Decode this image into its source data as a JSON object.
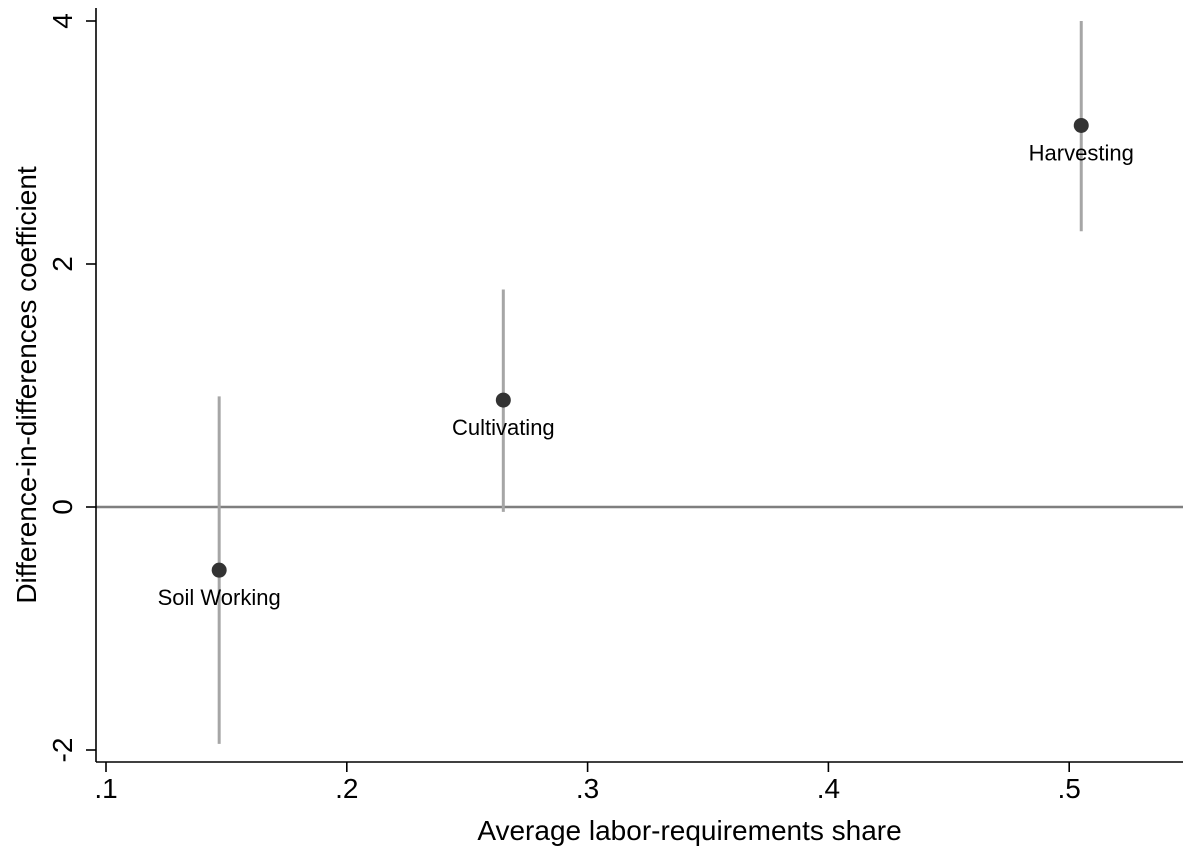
{
  "chart_data": {
    "type": "scatter",
    "xlabel": "Average labor-requirements share",
    "ylabel": "Difference-in-differences coefficient",
    "xlim": [
      0.1,
      0.55
    ],
    "ylim": [
      -2.0,
      4.0
    ],
    "xticks": [
      {
        "value": 0.1,
        "label": ".1"
      },
      {
        "value": 0.2,
        "label": ".2"
      },
      {
        "value": 0.3,
        "label": ".3"
      },
      {
        "value": 0.4,
        "label": ".4"
      },
      {
        "value": 0.5,
        "label": ".5"
      }
    ],
    "yticks": [
      {
        "value": -2,
        "label": "-2"
      },
      {
        "value": 0,
        "label": "0"
      },
      {
        "value": 2,
        "label": "2"
      },
      {
        "value": 4,
        "label": "4"
      }
    ],
    "reference_line_y": 0,
    "grid": false,
    "legend": "none",
    "points": [
      {
        "label": "Soil Working",
        "x": 0.147,
        "y": -0.52,
        "ci_low": -1.95,
        "ci_high": 0.91
      },
      {
        "label": "Cultivating",
        "x": 0.265,
        "y": 0.88,
        "ci_low": -0.04,
        "ci_high": 1.79
      },
      {
        "label": "Harvesting",
        "x": 0.505,
        "y": 3.14,
        "ci_low": 2.27,
        "ci_high": 4.0
      }
    ],
    "colors": {
      "point": "#333333",
      "ci": "#a6a6a6",
      "reference_line": "#7f7f7f"
    }
  }
}
